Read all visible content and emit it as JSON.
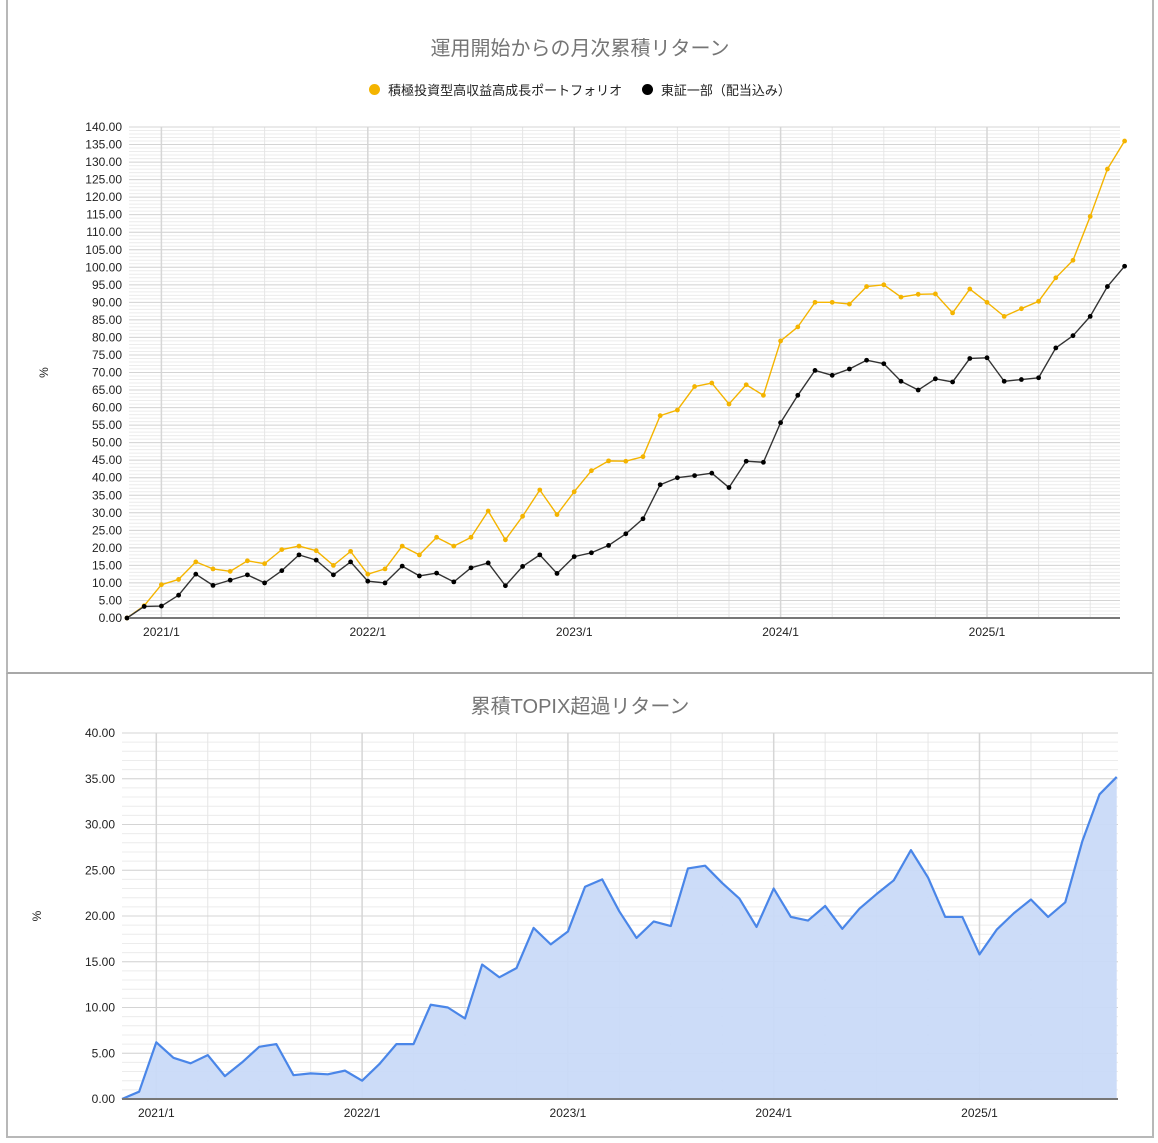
{
  "charts": {
    "top": {
      "title": "運用開始からの月次累積リターン",
      "legend": [
        {
          "label": "積極投資型高収益高成長ポートフォリオ",
          "color": "#f4b400"
        },
        {
          "label": "東証一部（配当込み）",
          "color": "#000000"
        }
      ],
      "ylabel": "%"
    },
    "bottom": {
      "title": "累積TOPIX超過リターン",
      "ylabel": "%"
    }
  },
  "chart_data": [
    {
      "type": "line",
      "title": "運用開始からの月次累積リターン",
      "xlabel": "",
      "ylabel": "%",
      "ylim": [
        0,
        140
      ],
      "ytick_step": 5,
      "xtick_labels": [
        "2021/1",
        "2022/1",
        "2023/1",
        "2024/1",
        "2025/1"
      ],
      "legend_position": "top",
      "grid": true,
      "x_start": "2020/11",
      "series": [
        {
          "name": "積極投資型高収益高成長ポートフォリオ",
          "color": "#f4b400",
          "values": [
            0,
            3.5,
            9.5,
            11,
            16,
            14,
            13.3,
            16.3,
            15.5,
            19.5,
            20.5,
            19.2,
            15,
            19,
            12.5,
            14,
            20.5,
            18,
            23,
            20.5,
            23,
            30.5,
            22.3,
            29,
            36.5,
            29.5,
            36,
            42,
            44.8,
            44.7,
            46,
            57.7,
            59.3,
            66,
            67,
            61,
            66.5,
            63.5,
            79,
            83,
            90,
            90,
            89.5,
            94.5,
            95,
            91.5,
            92.3,
            92.4,
            87,
            93.8,
            90,
            86,
            88.2,
            90.3,
            97,
            102,
            114.5,
            128,
            136
          ]
        },
        {
          "name": "東証一部（配当込み）",
          "color": "#000000",
          "values": [
            0,
            3.3,
            3.4,
            6.5,
            12.5,
            9.3,
            10.8,
            12.3,
            10,
            13.5,
            18,
            16.5,
            12.3,
            16,
            10.5,
            10,
            14.8,
            12,
            12.8,
            10.3,
            14.3,
            15.7,
            9.2,
            14.7,
            18,
            12.7,
            17.5,
            18.6,
            20.7,
            24,
            28.3,
            38,
            40,
            40.6,
            41.3,
            37.2,
            44.7,
            44.4,
            55.7,
            63.5,
            70.6,
            69.2,
            71,
            73.5,
            72.5,
            67.5,
            65,
            68.2,
            67.3,
            74,
            74.2,
            67.5,
            68,
            68.5,
            77,
            80.5,
            86,
            94.5,
            100.3
          ]
        }
      ]
    },
    {
      "type": "area",
      "title": "累積TOPIX超過リターン",
      "xlabel": "",
      "ylabel": "%",
      "ylim": [
        0,
        40
      ],
      "ytick_step": 5,
      "xtick_labels": [
        "2021/1",
        "2022/1",
        "2023/1",
        "2024/1",
        "2025/1"
      ],
      "grid": true,
      "x_start": "2020/11",
      "series": [
        {
          "name": "累積TOPIX超過リターン",
          "color": "#4a86e8",
          "fill": "#c9daf8",
          "values": [
            0,
            0.8,
            6.2,
            4.5,
            3.9,
            4.8,
            2.5,
            4.0,
            5.7,
            6.0,
            2.6,
            2.8,
            2.7,
            3.1,
            2.0,
            3.8,
            6.0,
            6.0,
            10.3,
            10.0,
            8.8,
            14.7,
            13.3,
            14.3,
            18.7,
            16.9,
            18.3,
            23.2,
            24.0,
            20.5,
            17.6,
            19.4,
            18.9,
            25.2,
            25.5,
            23.6,
            21.9,
            18.8,
            23.0,
            19.9,
            19.5,
            21.1,
            18.6,
            20.8,
            22.4,
            23.9,
            27.2,
            24.2,
            19.9,
            19.9,
            15.8,
            18.5,
            20.3,
            21.8,
            19.9,
            21.5,
            28.2,
            33.3,
            35.2
          ]
        }
      ]
    }
  ]
}
